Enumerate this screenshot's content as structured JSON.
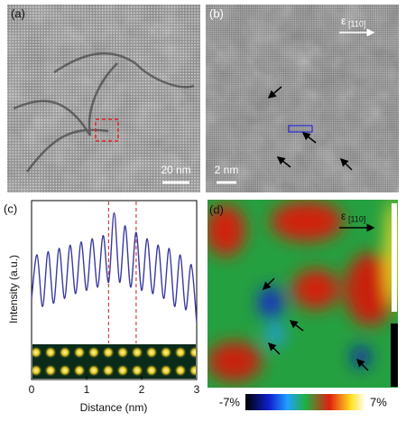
{
  "panels": {
    "a": {
      "label": "(a)",
      "scale_bar": "20 nm"
    },
    "b": {
      "label": "(b)",
      "scale_bar": "2 nm",
      "strain_symbol": "ε",
      "strain_direction": "[110]"
    },
    "c": {
      "label": "(c)"
    },
    "d": {
      "label": "(d)",
      "strain_symbol": "ε",
      "strain_direction": "[110]",
      "colorbar_min": "-7%",
      "colorbar_max": "7%"
    }
  },
  "chart_data": {
    "type": "line",
    "x_label": "Distance (nm)",
    "y_label": "Intensity (a.u.)",
    "x": [
      0,
      0.1,
      0.2,
      0.3,
      0.4,
      0.5,
      0.6,
      0.7,
      0.8,
      0.9,
      1.0,
      1.1,
      1.2,
      1.3,
      1.4,
      1.5,
      1.6,
      1.7,
      1.8,
      1.9,
      2.0,
      2.1,
      2.2,
      2.3,
      2.4,
      2.5,
      2.6,
      2.7,
      2.8,
      2.9,
      3.0
    ],
    "series": [
      {
        "color": "#3a3aa0",
        "values": [
          0.45,
          0.72,
          0.4,
          0.74,
          0.42,
          0.76,
          0.45,
          0.78,
          0.48,
          0.8,
          0.5,
          0.82,
          0.52,
          0.84,
          0.55,
          0.98,
          0.55,
          0.9,
          0.52,
          0.86,
          0.5,
          0.82,
          0.48,
          0.78,
          0.45,
          0.76,
          0.4,
          0.72,
          0.38,
          0.66,
          0.3
        ]
      }
    ],
    "markers": [
      1.4,
      1.9
    ],
    "marker_color": "#d04040",
    "xlim": [
      0,
      3
    ],
    "xticks": [
      0,
      1,
      2,
      3
    ],
    "ylim": [
      0.2,
      1.0
    ]
  }
}
